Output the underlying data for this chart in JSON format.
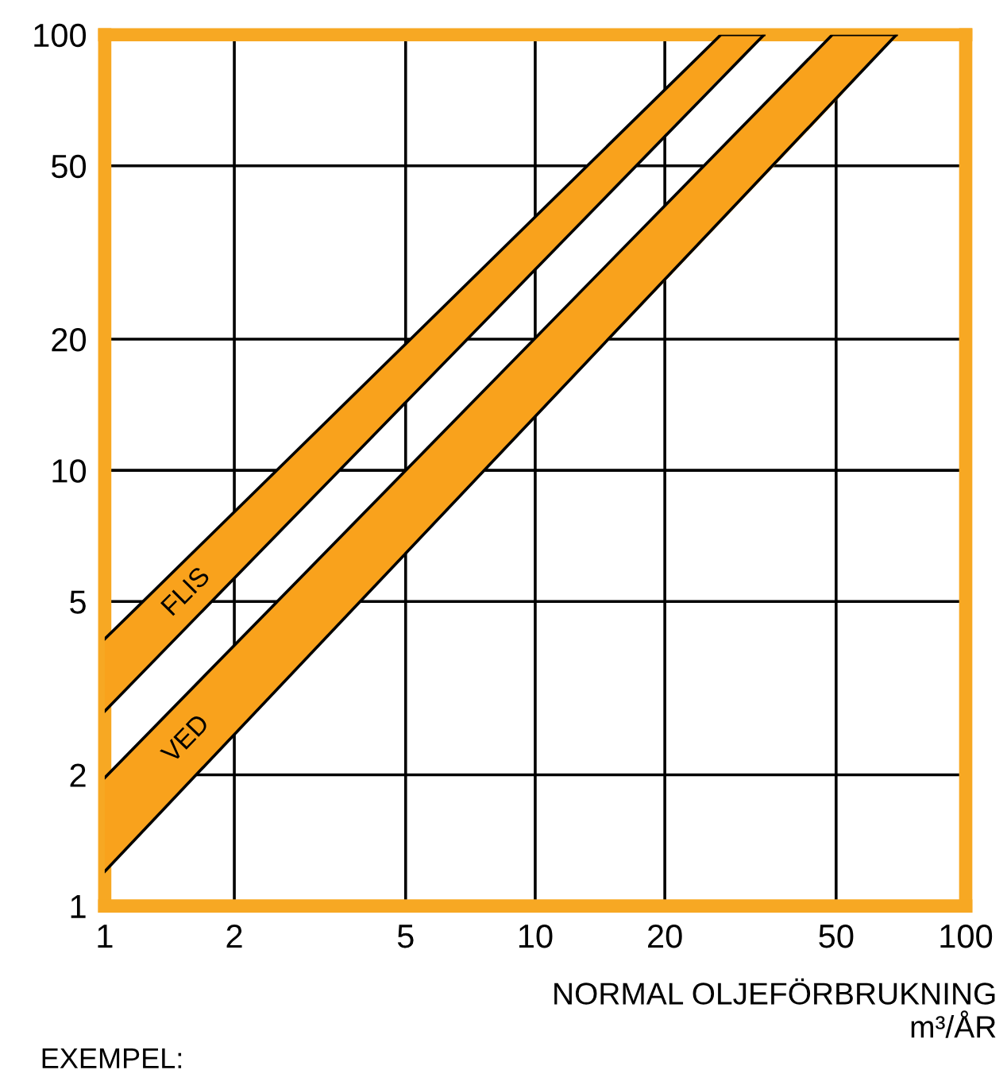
{
  "chart_data": {
    "type": "line",
    "log": "xy",
    "xlabel": "NORMAL OLJEFÖRBRUKNING\nm³/ÅR",
    "annotations": [
      "EXEMPEL:"
    ],
    "xlim": [
      1,
      100
    ],
    "ylim": [
      1,
      100
    ],
    "xticks": [
      1,
      2,
      5,
      10,
      20,
      50,
      100
    ],
    "yticks": [
      1,
      2,
      5,
      10,
      20,
      50,
      100
    ],
    "grid": true,
    "series": [
      {
        "name": "FLIS",
        "color": "#000000",
        "x": [
          1,
          27,
          34
        ],
        "values": [
          4.1,
          100,
          100
        ],
        "upper": [
          4.1,
          100,
          100
        ],
        "lower": [
          2.8,
          80,
          100
        ]
      },
      {
        "color": "#000000",
        "x": [
          1,
          34
        ],
        "values": [
          2.8,
          100
        ]
      },
      {
        "name": "VED",
        "color": "#000000",
        "x": [
          1,
          49,
          69
        ],
        "values": [
          1.97,
          100,
          100
        ],
        "upper": [
          1.97,
          100,
          100
        ],
        "lower": [
          1.2,
          69,
          100
        ]
      },
      {
        "color": "#000000",
        "x": [
          1,
          69
        ],
        "values": [
          1.2,
          100
        ]
      }
    ]
  }
}
